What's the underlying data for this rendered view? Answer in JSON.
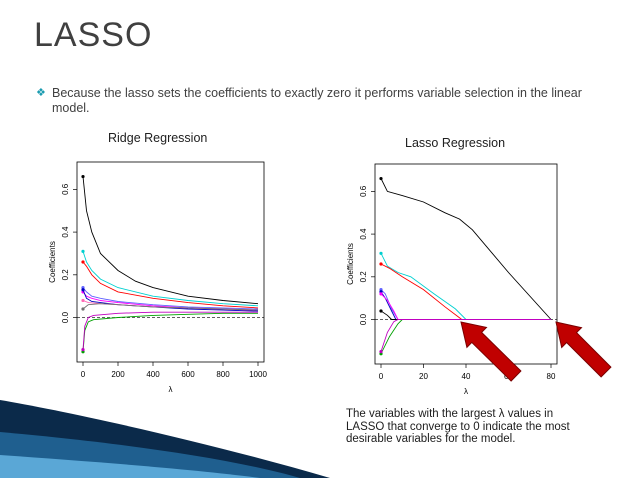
{
  "slide": {
    "title": "LASSO",
    "bullet": "Because the lasso sets the coefficients to exactly zero it performs variable selection in the linear model.",
    "bullet_icon": "diamond-bullet-icon",
    "caption_lines": [
      "The variables with the largest λ values in",
      "LASSO that converge to 0 indicate the most",
      "desirable variables for the model."
    ],
    "arrow_color": "#c00000",
    "accent_color": "#1a9bb0"
  },
  "chart_data": [
    {
      "type": "line",
      "title": "Ridge Regression",
      "xlabel": "λ",
      "ylabel": "Coefficients",
      "xlim": [
        0,
        1000
      ],
      "ylim": [
        -0.18,
        0.7
      ],
      "xticks": [
        0,
        200,
        400,
        600,
        800,
        1000
      ],
      "yticks": [
        0.0,
        0.2,
        0.4,
        0.6
      ],
      "grid": false,
      "series": [
        {
          "color": "#000000",
          "points": [
            [
              0,
              0.66
            ],
            [
              20,
              0.5
            ],
            [
              50,
              0.4
            ],
            [
              100,
              0.3
            ],
            [
              200,
              0.22
            ],
            [
              300,
              0.17
            ],
            [
              400,
              0.14
            ],
            [
              600,
              0.1
            ],
            [
              800,
              0.08
            ],
            [
              1000,
              0.065
            ]
          ]
        },
        {
          "color": "#00d0d0",
          "points": [
            [
              0,
              0.31
            ],
            [
              20,
              0.26
            ],
            [
              50,
              0.22
            ],
            [
              100,
              0.18
            ],
            [
              200,
              0.14
            ],
            [
              400,
              0.1
            ],
            [
              600,
              0.08
            ],
            [
              800,
              0.065
            ],
            [
              1000,
              0.055
            ]
          ]
        },
        {
          "color": "#ff0000",
          "points": [
            [
              0,
              0.26
            ],
            [
              20,
              0.24
            ],
            [
              50,
              0.2
            ],
            [
              100,
              0.16
            ],
            [
              200,
              0.12
            ],
            [
              400,
              0.09
            ],
            [
              600,
              0.07
            ],
            [
              800,
              0.055
            ],
            [
              1000,
              0.045
            ]
          ]
        },
        {
          "color": "#6060ff",
          "points": [
            [
              0,
              0.14
            ],
            [
              20,
              0.12
            ],
            [
              50,
              0.1
            ],
            [
              100,
              0.09
            ],
            [
              200,
              0.075
            ],
            [
              400,
              0.06
            ],
            [
              600,
              0.05
            ],
            [
              800,
              0.045
            ],
            [
              1000,
              0.04
            ]
          ]
        },
        {
          "color": "#ff00ff",
          "points": [
            [
              0,
              0.12
            ],
            [
              20,
              0.1
            ],
            [
              50,
              0.09
            ],
            [
              100,
              0.08
            ],
            [
              200,
              0.07
            ],
            [
              400,
              0.055
            ],
            [
              600,
              0.045
            ],
            [
              800,
              0.04
            ],
            [
              1000,
              0.035
            ]
          ]
        },
        {
          "color": "#0000c0",
          "points": [
            [
              0,
              0.13
            ],
            [
              20,
              0.09
            ],
            [
              50,
              0.075
            ],
            [
              100,
              0.07
            ],
            [
              200,
              0.06
            ],
            [
              400,
              0.05
            ],
            [
              600,
              0.04
            ],
            [
              800,
              0.035
            ],
            [
              1000,
              0.03
            ]
          ]
        },
        {
          "color": "#ff69b4",
          "points": [
            [
              0,
              0.08
            ],
            [
              30,
              0.07
            ],
            [
              100,
              0.065
            ],
            [
              200,
              0.06
            ],
            [
              400,
              0.05
            ],
            [
              600,
              0.045
            ],
            [
              800,
              0.04
            ],
            [
              1000,
              0.035
            ]
          ]
        },
        {
          "color": "#707070",
          "points": [
            [
              0,
              0.04
            ],
            [
              30,
              0.06
            ],
            [
              100,
              0.065
            ],
            [
              200,
              0.06
            ],
            [
              400,
              0.05
            ],
            [
              600,
              0.045
            ],
            [
              800,
              0.04
            ],
            [
              1000,
              0.035
            ]
          ]
        },
        {
          "color": "#00a000",
          "points": [
            [
              0,
              -0.16
            ],
            [
              10,
              -0.06
            ],
            [
              30,
              -0.02
            ],
            [
              60,
              -0.01
            ],
            [
              200,
              0.0
            ],
            [
              400,
              0.01
            ],
            [
              600,
              0.015
            ],
            [
              800,
              0.02
            ],
            [
              1000,
              0.02
            ]
          ]
        },
        {
          "color": "#c000c0",
          "points": [
            [
              0,
              -0.15
            ],
            [
              10,
              -0.04
            ],
            [
              30,
              0.0
            ],
            [
              60,
              0.01
            ],
            [
              200,
              0.02
            ],
            [
              400,
              0.025
            ],
            [
              600,
              0.025
            ],
            [
              800,
              0.025
            ],
            [
              1000,
              0.025
            ]
          ]
        }
      ]
    },
    {
      "type": "line",
      "title": "Lasso Regression",
      "xlabel": "λ",
      "ylabel": "Coefficients",
      "xlim": [
        0,
        80
      ],
      "ylim": [
        -0.18,
        0.7
      ],
      "xticks": [
        0,
        20,
        40,
        60,
        80
      ],
      "yticks": [
        0.0,
        0.2,
        0.4,
        0.6
      ],
      "grid": false,
      "series": [
        {
          "color": "#000000",
          "points": [
            [
              0,
              0.66
            ],
            [
              3,
              0.6
            ],
            [
              10,
              0.58
            ],
            [
              20,
              0.55
            ],
            [
              30,
              0.5
            ],
            [
              37,
              0.47
            ],
            [
              43,
              0.42
            ],
            [
              60,
              0.22
            ],
            [
              80,
              0.0
            ]
          ]
        },
        {
          "color": "#00d0d0",
          "points": [
            [
              0,
              0.31
            ],
            [
              3,
              0.25
            ],
            [
              8,
              0.22
            ],
            [
              14,
              0.2
            ],
            [
              25,
              0.12
            ],
            [
              35,
              0.05
            ],
            [
              40,
              0.0
            ],
            [
              80,
              0.0
            ]
          ]
        },
        {
          "color": "#ff0000",
          "points": [
            [
              0,
              0.26
            ],
            [
              4,
              0.24
            ],
            [
              10,
              0.2
            ],
            [
              20,
              0.14
            ],
            [
              30,
              0.06
            ],
            [
              38,
              0.0
            ],
            [
              80,
              0.0
            ]
          ]
        },
        {
          "color": "#6060ff",
          "points": [
            [
              0,
              0.14
            ],
            [
              2,
              0.12
            ],
            [
              5,
              0.05
            ],
            [
              8,
              0.0
            ],
            [
              80,
              0.0
            ]
          ]
        },
        {
          "color": "#0000c0",
          "points": [
            [
              0,
              0.13
            ],
            [
              2,
              0.1
            ],
            [
              5,
              0.04
            ],
            [
              7,
              0.0
            ],
            [
              80,
              0.0
            ]
          ]
        },
        {
          "color": "#ff00ff",
          "points": [
            [
              0,
              0.12
            ],
            [
              3,
              0.09
            ],
            [
              6,
              0.04
            ],
            [
              8,
              0.0
            ],
            [
              80,
              0.0
            ]
          ]
        },
        {
          "color": "#000000",
          "points": [
            [
              0,
              0.04
            ],
            [
              3,
              0.02
            ],
            [
              5,
              0.0
            ],
            [
              80,
              0.0
            ]
          ]
        },
        {
          "color": "#00a000",
          "points": [
            [
              0,
              -0.16
            ],
            [
              4,
              -0.08
            ],
            [
              8,
              -0.02
            ],
            [
              10,
              0.0
            ],
            [
              80,
              0.0
            ]
          ]
        },
        {
          "color": "#c000c0",
          "points": [
            [
              0,
              -0.15
            ],
            [
              3,
              -0.06
            ],
            [
              6,
              -0.01
            ],
            [
              8,
              0.0
            ],
            [
              80,
              0.0
            ]
          ]
        }
      ]
    }
  ]
}
